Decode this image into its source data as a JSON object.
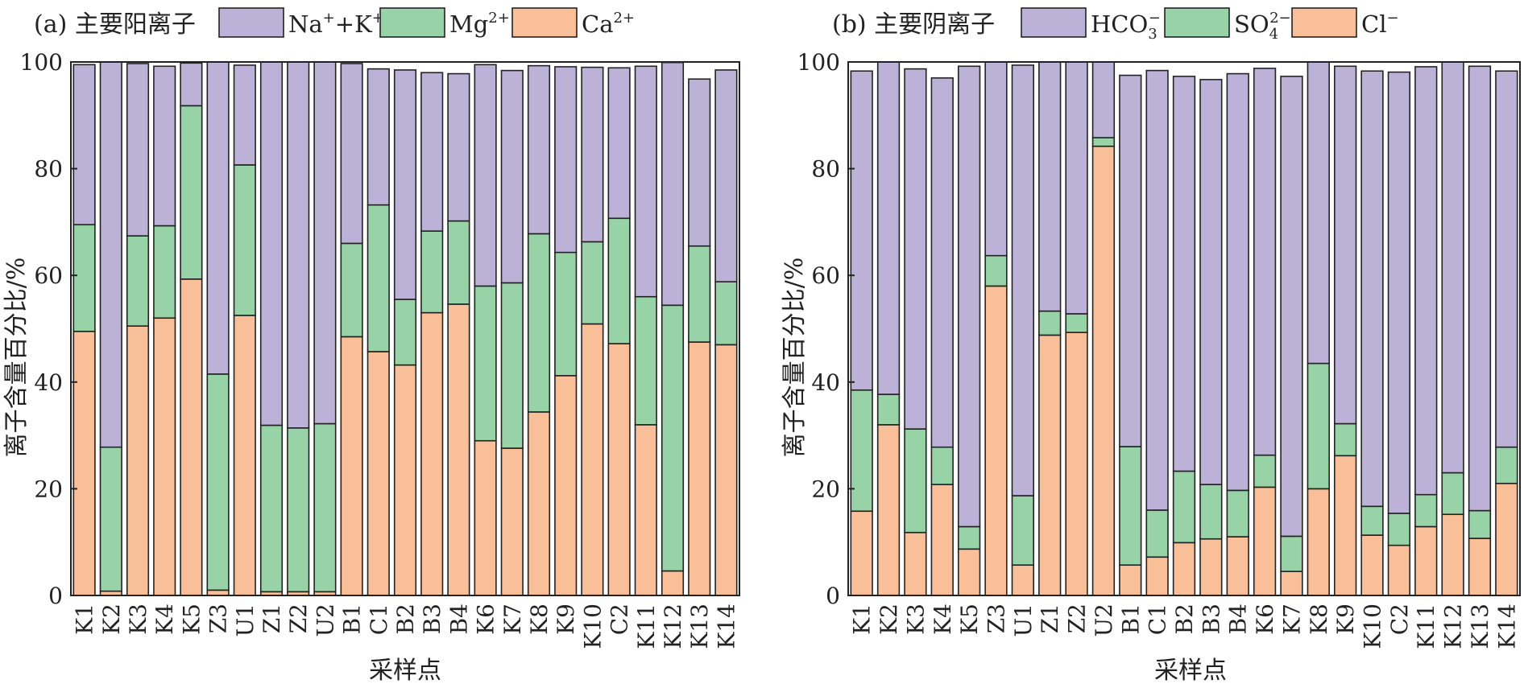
{
  "chart_data": [
    {
      "type": "bar",
      "stacked": true,
      "title": "(a) 主要阳离子",
      "xlabel": "采样点",
      "ylabel": "离子含量百分比/%",
      "ylim": [
        0,
        100
      ],
      "yticks": [
        "0",
        "20",
        "40",
        "60",
        "80",
        "100"
      ],
      "categories": [
        "K1",
        "K2",
        "K3",
        "K4",
        "K5",
        "Z3",
        "U1",
        "Z1",
        "Z2",
        "U2",
        "B1",
        "C1",
        "B2",
        "B3",
        "B4",
        "K6",
        "K7",
        "K8",
        "K9",
        "K10",
        "C2",
        "K11",
        "K12",
        "K13",
        "K14"
      ],
      "legend": [
        {
          "base": "Na",
          "sup": "+",
          "mid": "+K",
          "sup2": "+"
        },
        {
          "base": "Mg",
          "sup": "2+",
          "mid": "",
          "sup2": ""
        },
        {
          "base": "Ca",
          "sup": "2+",
          "mid": "",
          "sup2": ""
        }
      ],
      "series": [
        {
          "name": "Ca2+",
          "color": "#f8bf98",
          "values": [
            49.5,
            0.8,
            50.5,
            52,
            59.3,
            1,
            52.5,
            0.7,
            0.7,
            0.7,
            48.5,
            45.7,
            43.2,
            53,
            54.6,
            29,
            27.6,
            34.4,
            41.2,
            50.9,
            47.2,
            32,
            4.6,
            47.5,
            47
          ]
        },
        {
          "name": "Mg2+",
          "color": "#97d3a7",
          "values": [
            20,
            27,
            16.9,
            17.3,
            32.5,
            40.5,
            28.2,
            31.2,
            30.7,
            31.5,
            17.5,
            27.5,
            12.3,
            15.3,
            15.6,
            29,
            31,
            33.4,
            23.1,
            15.4,
            23.5,
            24,
            49.8,
            18,
            11.8
          ]
        },
        {
          "name": "Na++K+",
          "color": "#bcb2d8",
          "values": [
            30,
            72.2,
            32.3,
            29.9,
            8,
            58.5,
            18.7,
            68.1,
            68.6,
            67.8,
            33.7,
            25.5,
            43,
            29.7,
            27.6,
            41.5,
            39.8,
            31.5,
            34.8,
            32.7,
            28.2,
            43.2,
            45.5,
            31.3,
            39.7
          ]
        }
      ]
    },
    {
      "type": "bar",
      "stacked": true,
      "title": "(b) 主要阴离子",
      "xlabel": "采样点",
      "ylabel": "离子含量百分比/%",
      "ylim": [
        0,
        100
      ],
      "yticks": [
        "0",
        "20",
        "40",
        "60",
        "80",
        "100"
      ],
      "categories": [
        "K1",
        "K2",
        "K3",
        "K4",
        "K5",
        "Z3",
        "U1",
        "Z1",
        "Z2",
        "U2",
        "B1",
        "C1",
        "B2",
        "B3",
        "B4",
        "K6",
        "K7",
        "K8",
        "K9",
        "K10",
        "C2",
        "K11",
        "K12",
        "K13",
        "K14"
      ],
      "legend": [
        {
          "base": "HCO",
          "sub": "3",
          "sup": "−"
        },
        {
          "base": "SO",
          "sub": "4",
          "sup": "2−"
        },
        {
          "base": "Cl",
          "sub": "",
          "sup": "−"
        }
      ],
      "series": [
        {
          "name": "Cl-",
          "color": "#f8bf98",
          "values": [
            15.8,
            32,
            11.8,
            20.8,
            8.7,
            58,
            5.7,
            48.8,
            49.3,
            84.2,
            5.7,
            7.2,
            9.9,
            10.6,
            11,
            20.3,
            4.5,
            20,
            26.2,
            11.3,
            9.4,
            12.9,
            15.2,
            10.7,
            21
          ]
        },
        {
          "name": "SO42-",
          "color": "#97d3a7",
          "values": [
            22.7,
            5.7,
            19.4,
            7,
            4.2,
            5.7,
            13,
            4.5,
            3.5,
            1.6,
            22.2,
            8.8,
            13.4,
            10.2,
            8.7,
            6,
            6.6,
            23.5,
            6,
            5.4,
            6,
            6,
            7.8,
            5.2,
            6.8
          ]
        },
        {
          "name": "HCO3-",
          "color": "#bcb2d8",
          "values": [
            59.8,
            62.3,
            67.5,
            69.2,
            86.3,
            36.3,
            80.7,
            46.7,
            47.2,
            14.2,
            69.6,
            82.4,
            74,
            75.9,
            78.1,
            72.5,
            86.2,
            56.5,
            67,
            81.6,
            82.7,
            80.2,
            77,
            83.3,
            70.5
          ]
        }
      ]
    }
  ]
}
